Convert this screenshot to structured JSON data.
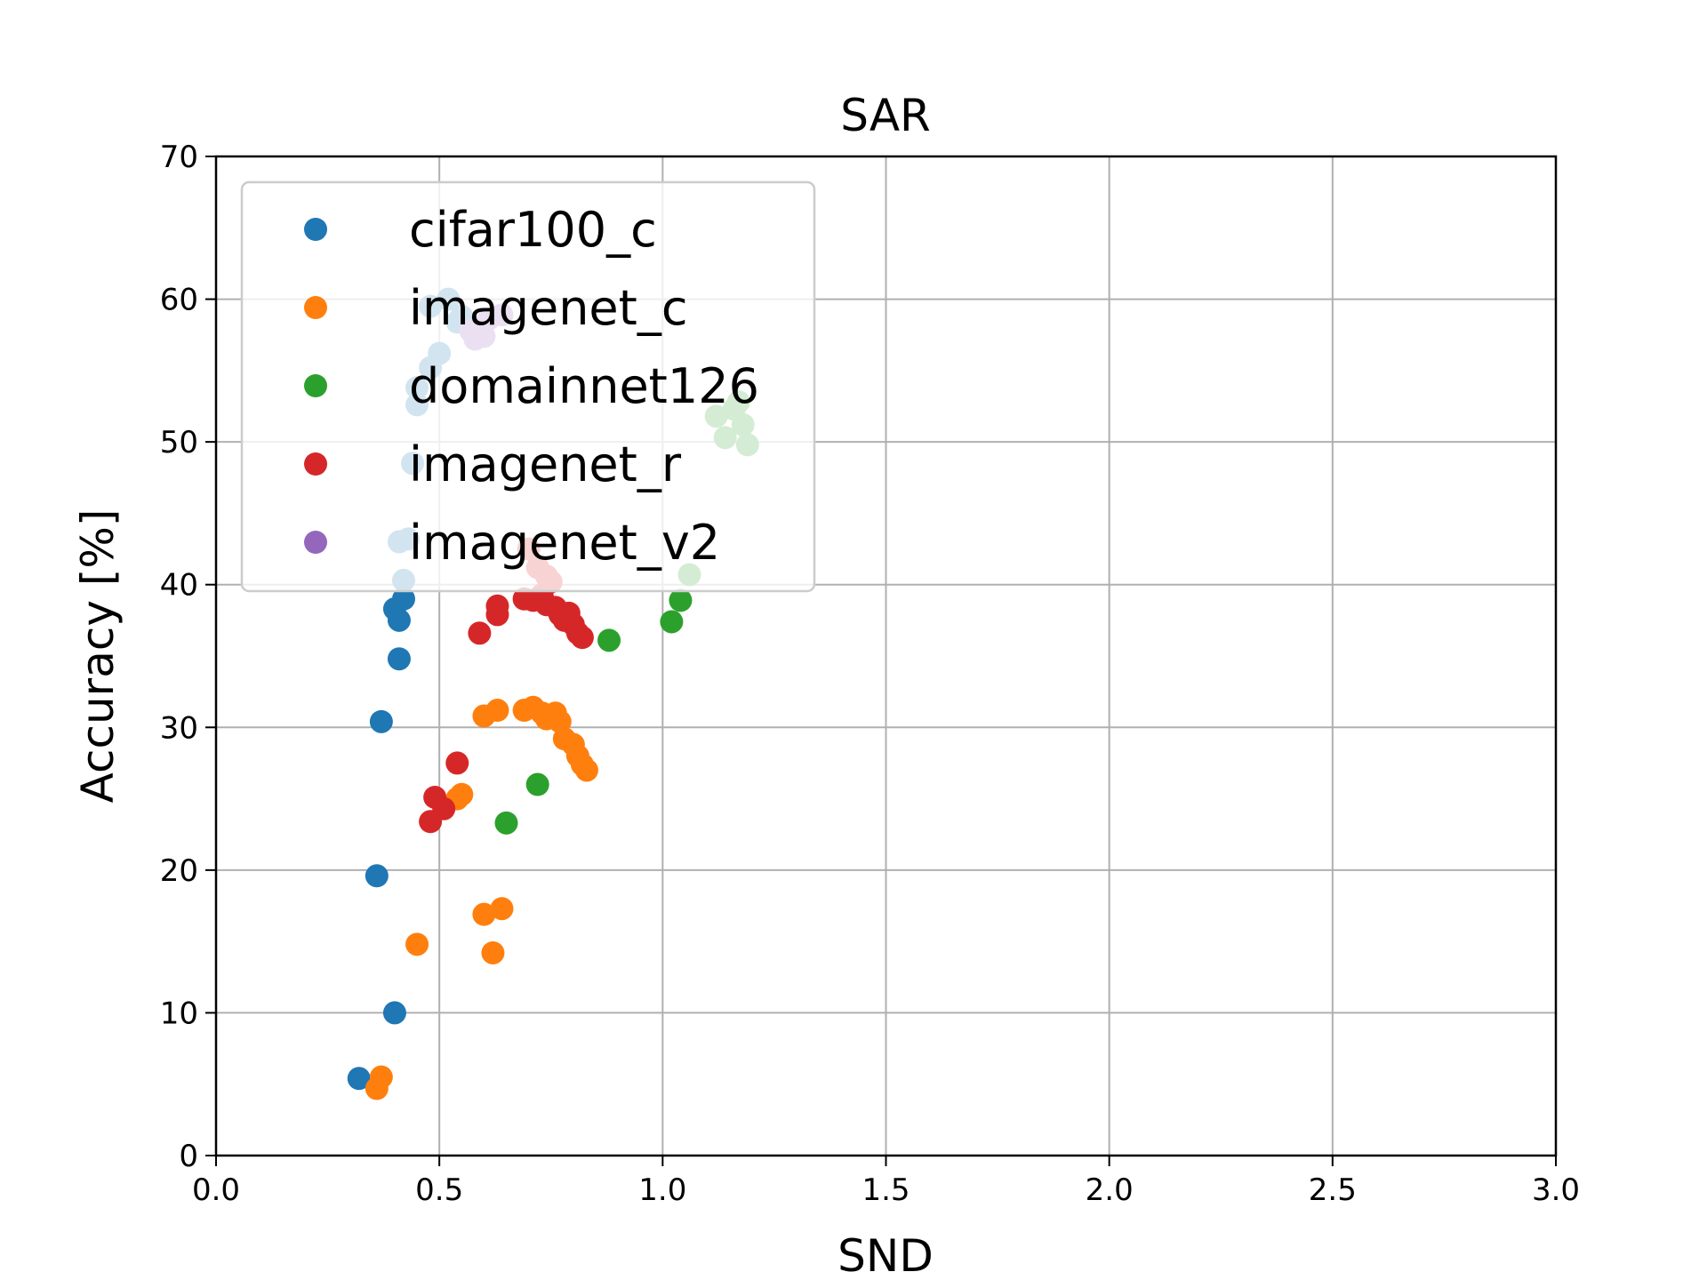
{
  "chart_data": {
    "type": "scatter",
    "title": "SAR",
    "xlabel": "SND",
    "ylabel": "Accuracy [%]",
    "xlim": [
      0.0,
      3.0
    ],
    "ylim": [
      0,
      70
    ],
    "xticks": [
      "0.0",
      "0.5",
      "1.0",
      "1.5",
      "2.0",
      "2.5",
      "3.0"
    ],
    "yticks": [
      "0",
      "10",
      "20",
      "30",
      "40",
      "50",
      "60",
      "70"
    ],
    "grid": true,
    "legend_position": "top-left",
    "series": [
      {
        "name": "cifar100_c",
        "color": "#1f77b4",
        "points": [
          [
            0.32,
            5.4
          ],
          [
            0.4,
            10.0
          ],
          [
            0.36,
            19.6
          ],
          [
            0.37,
            30.4
          ],
          [
            0.41,
            34.8
          ],
          [
            0.41,
            37.5
          ],
          [
            0.4,
            38.3
          ],
          [
            0.42,
            39.0
          ],
          [
            0.42,
            40.3
          ],
          [
            0.41,
            43.0
          ],
          [
            0.43,
            43.2
          ],
          [
            0.44,
            48.5
          ],
          [
            0.45,
            52.6
          ],
          [
            0.45,
            53.8
          ],
          [
            0.48,
            55.2
          ],
          [
            0.5,
            56.2
          ],
          [
            0.48,
            59.5
          ],
          [
            0.52,
            60.0
          ],
          [
            0.54,
            58.4
          ],
          [
            0.55,
            58.8
          ]
        ]
      },
      {
        "name": "imagenet_c",
        "color": "#ff7f0e",
        "points": [
          [
            0.36,
            4.7
          ],
          [
            0.37,
            5.5
          ],
          [
            0.45,
            14.8
          ],
          [
            0.62,
            14.2
          ],
          [
            0.6,
            16.9
          ],
          [
            0.64,
            17.3
          ],
          [
            0.54,
            25.0
          ],
          [
            0.55,
            25.3
          ],
          [
            0.6,
            30.8
          ],
          [
            0.63,
            31.2
          ],
          [
            0.69,
            31.2
          ],
          [
            0.71,
            31.4
          ],
          [
            0.73,
            31.0
          ],
          [
            0.74,
            30.6
          ],
          [
            0.76,
            31.0
          ],
          [
            0.77,
            30.4
          ],
          [
            0.78,
            29.2
          ],
          [
            0.8,
            28.8
          ],
          [
            0.81,
            28.0
          ],
          [
            0.82,
            27.4
          ],
          [
            0.83,
            27.0
          ]
        ]
      },
      {
        "name": "domainnet126",
        "color": "#2ca02c",
        "points": [
          [
            0.65,
            23.3
          ],
          [
            0.72,
            26.0
          ],
          [
            0.88,
            36.1
          ],
          [
            1.02,
            37.4
          ],
          [
            1.04,
            38.9
          ],
          [
            1.06,
            40.7
          ],
          [
            1.12,
            51.8
          ],
          [
            1.14,
            50.3
          ],
          [
            1.16,
            52.3
          ],
          [
            1.18,
            51.2
          ],
          [
            1.19,
            49.8
          ],
          [
            1.17,
            52.8
          ]
        ]
      },
      {
        "name": "imagenet_r",
        "color": "#d62728",
        "points": [
          [
            0.48,
            23.4
          ],
          [
            0.49,
            25.1
          ],
          [
            0.51,
            24.3
          ],
          [
            0.54,
            27.5
          ],
          [
            0.59,
            36.6
          ],
          [
            0.63,
            37.9
          ],
          [
            0.63,
            38.5
          ],
          [
            0.69,
            39.0
          ],
          [
            0.71,
            38.9
          ],
          [
            0.72,
            39.0
          ],
          [
            0.73,
            39.3
          ],
          [
            0.74,
            38.6
          ],
          [
            0.76,
            38.4
          ],
          [
            0.77,
            37.9
          ],
          [
            0.78,
            37.5
          ],
          [
            0.79,
            38.0
          ],
          [
            0.8,
            37.2
          ],
          [
            0.81,
            36.6
          ],
          [
            0.82,
            36.3
          ],
          [
            0.72,
            41.2
          ],
          [
            0.74,
            40.6
          ],
          [
            0.75,
            40.2
          ],
          [
            0.7,
            42.5
          ]
        ]
      },
      {
        "name": "imagenet_v2",
        "color": "#9467bd",
        "points": [
          [
            0.58,
            57.2
          ],
          [
            0.6,
            57.4
          ],
          [
            0.59,
            58.0
          ],
          [
            0.61,
            58.6
          ],
          [
            0.64,
            58.9
          ],
          [
            0.57,
            57.8
          ]
        ]
      }
    ]
  }
}
